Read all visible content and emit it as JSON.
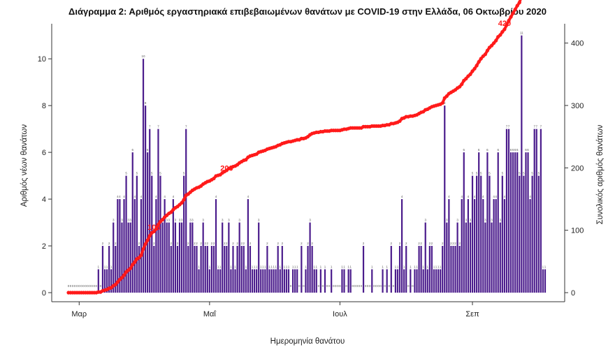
{
  "chart_data": {
    "type": "bar+line",
    "title": "Διάγραμμα 2: Αριθμός εργαστηριακά επιβεβαιωμένων θανάτων με COVID-19 στην Ελλάδα, 06 Οκτωβρίου 2020",
    "xlabel": "Ημερομηνία θανάτου",
    "ylabel_left": "Αριθμός νέων θανάτων",
    "ylabel_right": "Συνολικός αριθμός θανάτων",
    "x_tick_labels": [
      "Μαρ",
      "Μαΐ",
      "Ιουλ",
      "Σεπ"
    ],
    "x_tick_day_index": [
      5,
      66,
      127,
      189
    ],
    "ylim_left": [
      0,
      11.5
    ],
    "y_ticks_left": [
      0,
      2,
      4,
      6,
      8,
      10
    ],
    "ylim_right": [
      0,
      431
    ],
    "y_ticks_right": [
      0,
      100,
      200,
      300,
      400
    ],
    "bar_color": "#4b1c8c",
    "line_color": "#ff1a1a",
    "series": [
      {
        "name": "Αριθμός νέων θανάτων",
        "type": "bar",
        "axis": "left",
        "values": [
          0,
          0,
          0,
          0,
          0,
          0,
          0,
          0,
          0,
          0,
          0,
          0,
          0,
          0,
          1,
          0,
          2,
          1,
          1,
          2,
          1,
          3,
          2,
          4,
          4,
          3,
          4,
          5,
          3,
          3,
          6,
          4,
          5,
          2,
          4,
          10,
          8,
          6,
          7,
          5,
          2,
          4,
          7,
          5,
          3,
          4,
          3,
          3,
          2,
          4,
          3,
          2,
          3,
          3,
          5,
          7,
          2,
          3,
          3,
          2,
          2,
          1,
          2,
          3,
          2,
          2,
          1,
          2,
          2,
          4,
          1,
          1,
          3,
          2,
          2,
          3,
          1,
          2,
          1,
          2,
          3,
          2,
          2,
          1,
          4,
          2,
          1,
          1,
          1,
          3,
          1,
          1,
          1,
          2,
          1,
          1,
          1,
          1,
          2,
          1,
          2,
          1,
          1,
          1,
          0,
          1,
          1,
          1,
          0,
          2,
          0,
          1,
          2,
          3,
          2,
          1,
          1,
          0,
          1,
          0,
          1,
          0,
          0,
          1,
          0,
          0,
          0,
          0,
          1,
          1,
          0,
          1,
          1,
          0,
          0,
          0,
          0,
          0,
          2,
          0,
          0,
          0,
          1,
          0,
          0,
          0,
          0,
          1,
          0,
          1,
          0,
          2,
          0,
          1,
          1,
          2,
          4,
          1,
          2,
          0,
          1,
          0,
          1,
          1,
          2,
          2,
          1,
          3,
          1,
          2,
          2,
          1,
          1,
          1,
          1,
          2,
          8,
          3,
          4,
          2,
          2,
          2,
          3,
          2,
          4,
          6,
          3,
          4,
          3,
          5,
          4,
          5,
          6,
          5,
          4,
          3,
          6,
          5,
          3,
          4,
          4,
          6,
          3,
          5,
          4,
          7,
          7,
          6,
          6,
          6,
          6,
          5,
          11,
          5,
          6,
          6,
          4,
          5,
          7,
          7,
          5,
          7,
          1,
          1
        ],
        "data_labels_visible": true
      },
      {
        "name": "Συνολικός αριθμός θανάτων",
        "type": "line",
        "axis": "right",
        "end_values": [
          105,
          200,
          420
        ]
      }
    ],
    "annotations": [
      {
        "text": "105",
        "series": "Συνολικός αριθμός θανάτων"
      },
      {
        "text": "200",
        "series": "Συνολικός αριθμός θανάτων"
      },
      {
        "text": "420",
        "series": "Συνολικός αριθμός θανάτων"
      }
    ]
  }
}
